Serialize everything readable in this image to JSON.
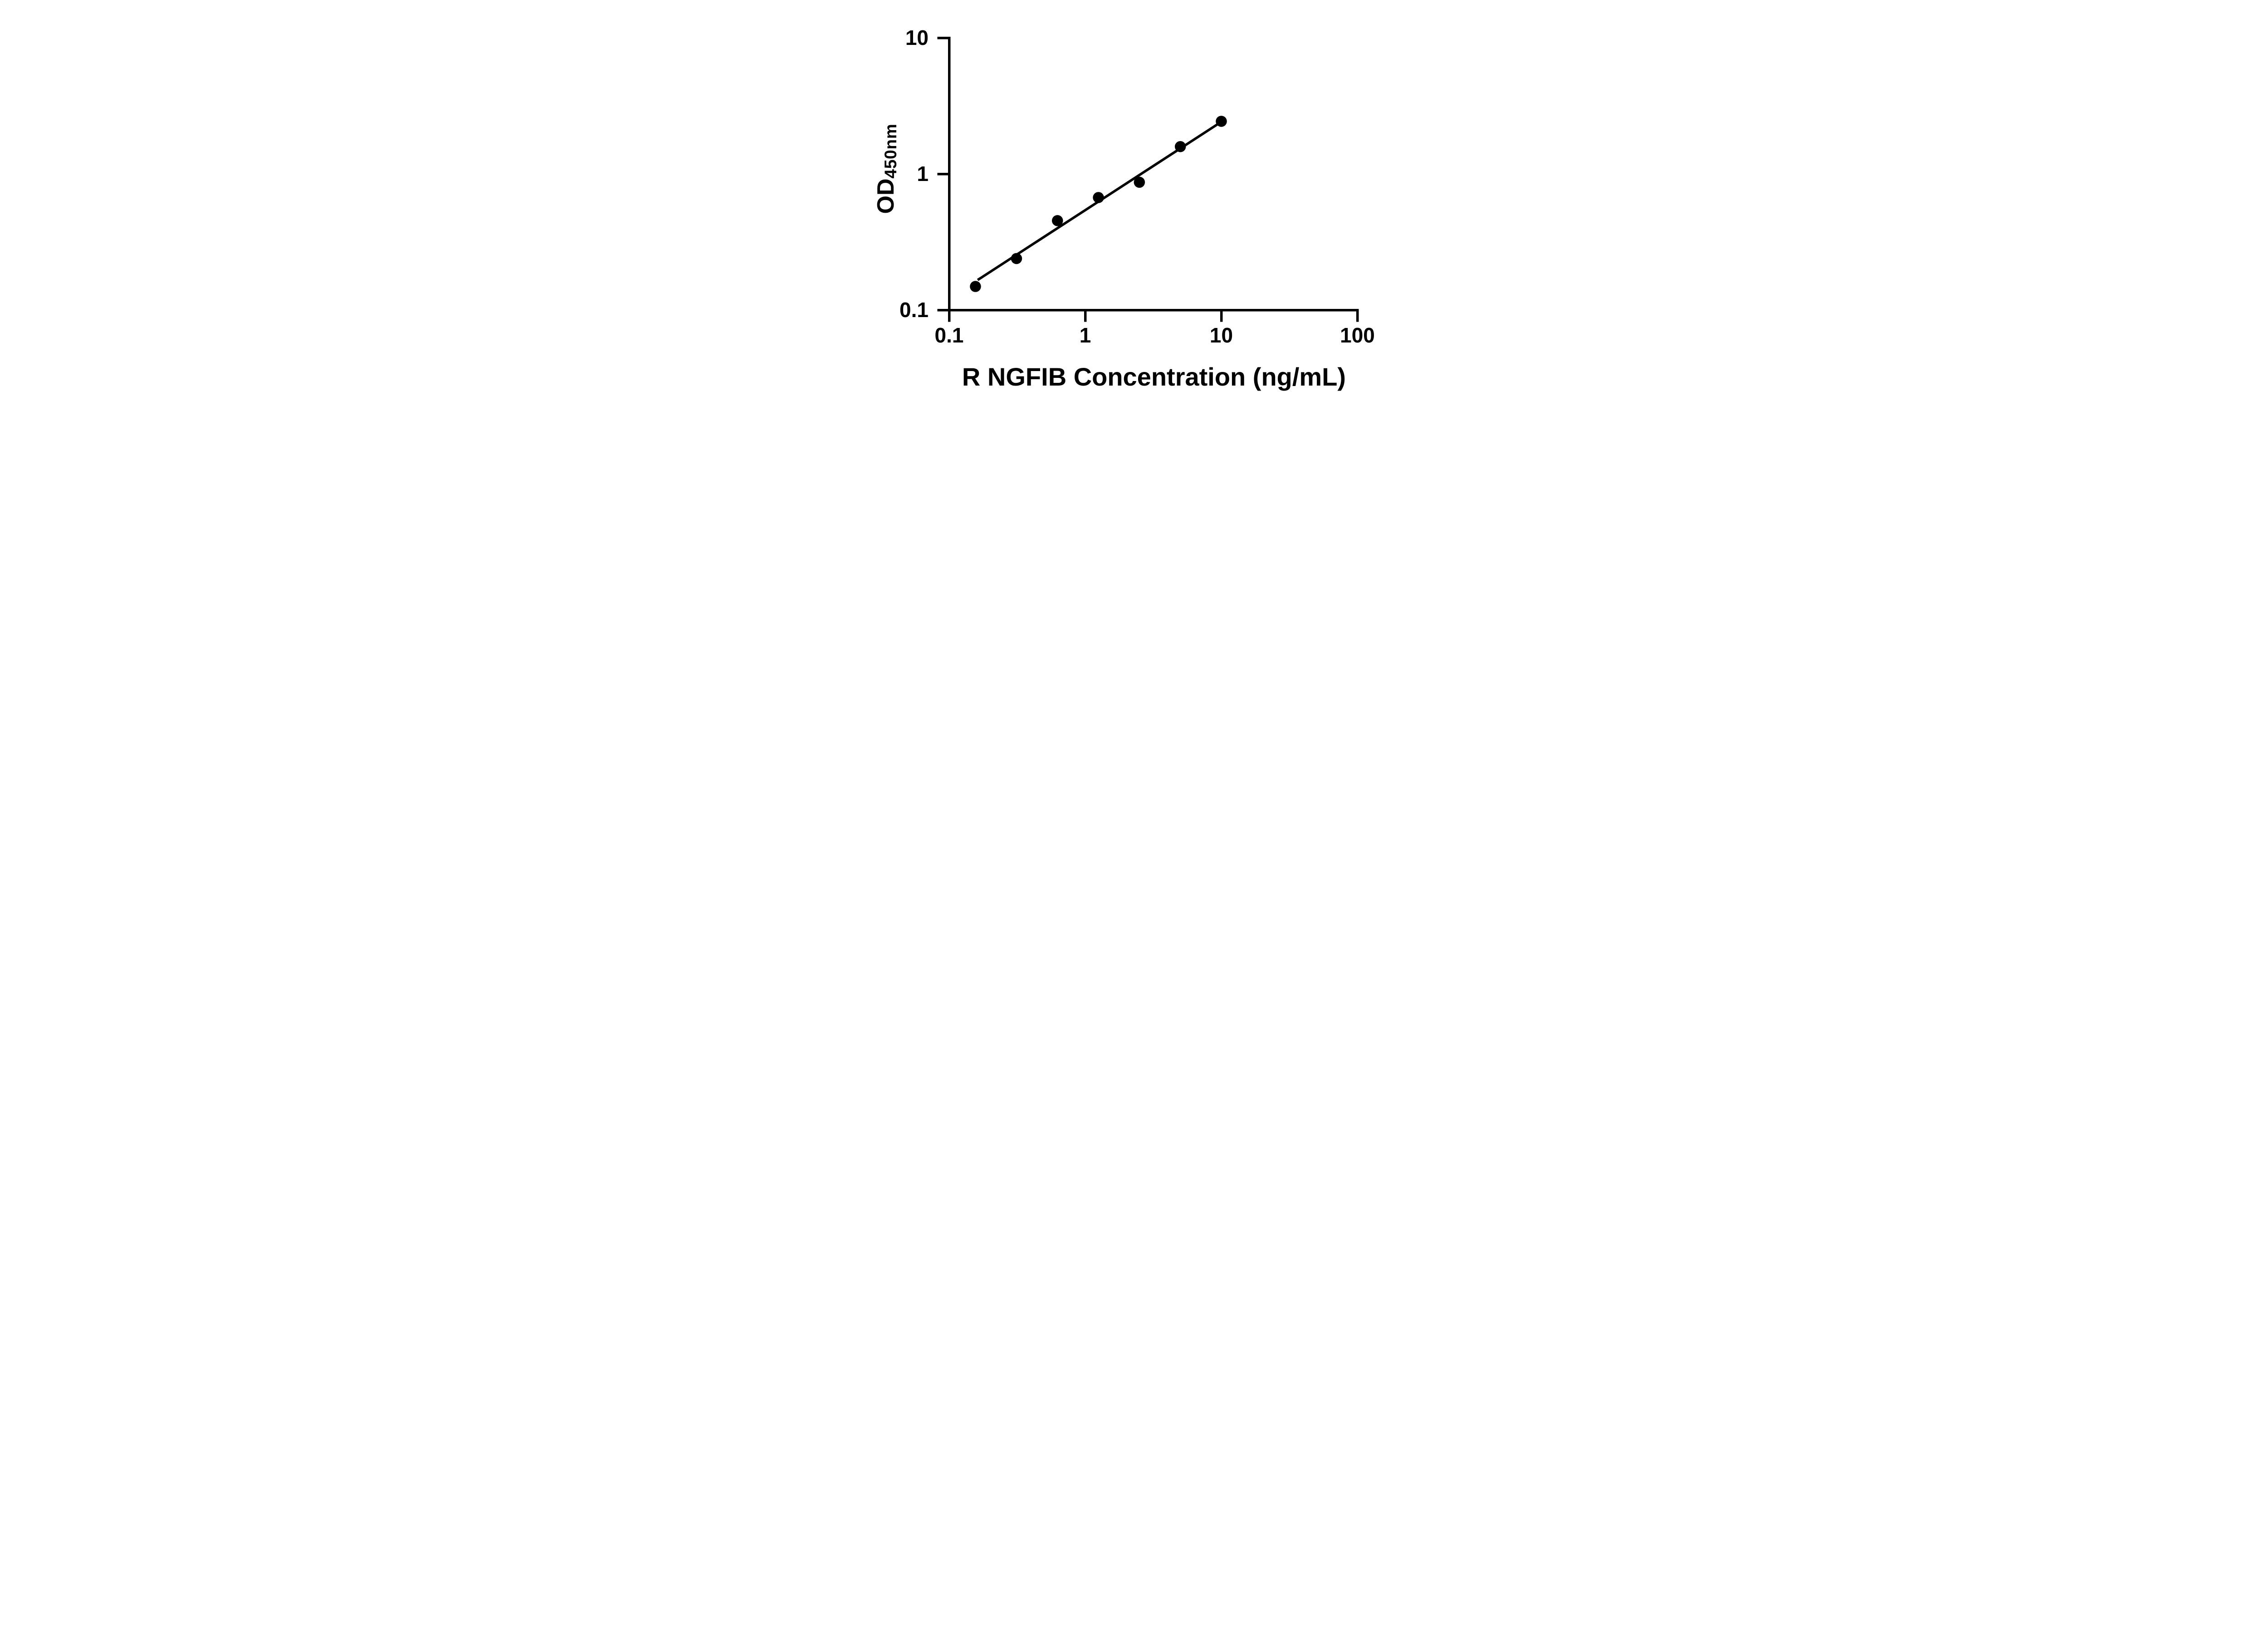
{
  "chart_data": {
    "type": "scatter",
    "title": "",
    "xlabel": "R NGFIB Concentration (ng/mL)",
    "ylabel_main": "OD",
    "ylabel_sub": "450nm",
    "x_scale": "log10",
    "y_scale": "log10",
    "xlim": [
      0.1,
      100
    ],
    "ylim": [
      0.1,
      10
    ],
    "x_ticks": [
      0.1,
      1,
      10,
      100
    ],
    "x_tick_labels": [
      "0.1",
      "1",
      "10",
      "100"
    ],
    "y_ticks": [
      10,
      1,
      0.1
    ],
    "y_tick_labels": [
      "10",
      "1",
      "0.1"
    ],
    "grid": false,
    "legend": null,
    "background": "#ffffff",
    "axis_color": "#000000",
    "marker_color": "#000000",
    "line_color": "#000000",
    "points": [
      {
        "x": 0.156,
        "y": 0.149
      },
      {
        "x": 0.3125,
        "y": 0.239
      },
      {
        "x": 0.625,
        "y": 0.454
      },
      {
        "x": 1.25,
        "y": 0.671
      },
      {
        "x": 2.5,
        "y": 0.869
      },
      {
        "x": 5,
        "y": 1.588
      },
      {
        "x": 10,
        "y": 2.437
      }
    ],
    "trend_line": {
      "model": "log10(y) = slope * log10(x) + intercept",
      "slope": 0.649,
      "intercept": -0.266,
      "x_start": 0.162,
      "x_end": 10
    }
  }
}
